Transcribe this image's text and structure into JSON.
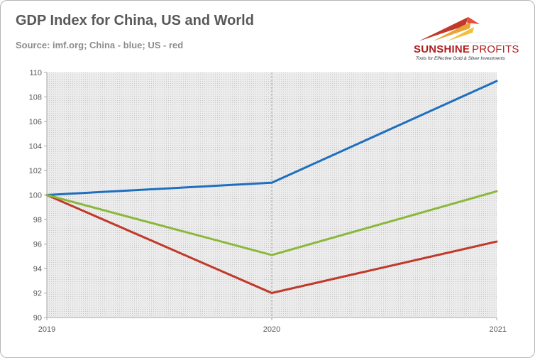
{
  "header": {
    "title": "GDP Index for China, US and World",
    "subtitle": "Source: imf.org; China - blue; US - red"
  },
  "logo": {
    "name_part1": "SUNSHINE",
    "name_part2": "PROFITS",
    "tagline": "Tools for Effective Gold & Silver Investments",
    "icon": "rising-swoosh-logo-icon"
  },
  "colors": {
    "china": "#1f6fbf",
    "us": "#c0392b",
    "world": "#8ab83a",
    "plot_background": "#e6e6e6",
    "axis": "#a6a6a6"
  },
  "chart_data": {
    "type": "line",
    "title": "GDP Index for China, US and World",
    "subtitle": "Source: imf.org; China - blue; US - red",
    "xlabel": "",
    "ylabel": "",
    "x": [
      "2019",
      "2020",
      "2021"
    ],
    "ylim": [
      90,
      110
    ],
    "yticks": [
      90,
      92,
      94,
      96,
      98,
      100,
      102,
      104,
      106,
      108,
      110
    ],
    "grid": true,
    "legend": "none",
    "series": [
      {
        "color": "#1f6fbf",
        "values": [
          100,
          101.0,
          109.3
        ]
      },
      {
        "color": "#c0392b",
        "values": [
          100,
          92.0,
          96.2
        ]
      },
      {
        "color": "#8ab83a",
        "values": [
          100,
          95.1,
          100.3
        ]
      }
    ]
  }
}
